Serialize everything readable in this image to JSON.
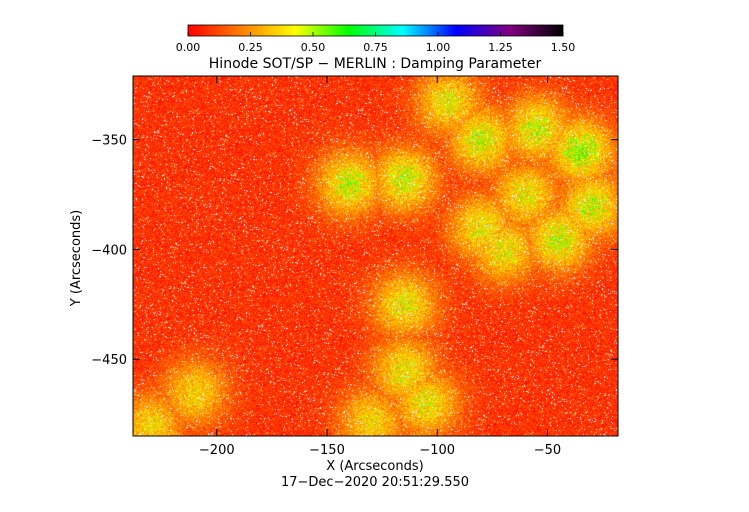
{
  "chart_data": {
    "type": "heatmap",
    "title": "Hinode SOT/SP − MERLIN : Damping Parameter",
    "xlabel": "X (Arcseconds)",
    "ylabel": "Y (Arcseconds)",
    "timestamp": "17−Dec−2020 20:51:29.550",
    "xlim": [
      -238,
      -18
    ],
    "ylim": [
      -485,
      -321
    ],
    "x_ticks": [
      -200,
      -150,
      -100,
      -50
    ],
    "x_tick_labels": [
      "−200",
      "−150",
      "−100",
      "−50"
    ],
    "y_ticks": [
      -350,
      -400,
      -450
    ],
    "y_tick_labels": [
      "−350",
      "−400",
      "−450"
    ],
    "colorbar": {
      "range": [
        0,
        1.5
      ],
      "ticks": [
        0,
        0.25,
        0.5,
        0.75,
        1.0,
        1.25,
        1.5
      ],
      "tick_labels": [
        "0.00",
        "0.25",
        "0.50",
        "0.75",
        "1.00",
        "1.25",
        "1.50"
      ],
      "colormap": [
        "#ff0000",
        "#ff8000",
        "#ffff00",
        "#00ff00",
        "#00ffff",
        "#0000ff",
        "#800080",
        "#000000"
      ]
    },
    "background_value": 0.1,
    "enhanced_regions": [
      {
        "x": -140,
        "y": -370,
        "value": 0.55
      },
      {
        "x": -115,
        "y": -368,
        "value": 0.55
      },
      {
        "x": -95,
        "y": -333,
        "value": 0.5
      },
      {
        "x": -80,
        "y": -350,
        "value": 0.55
      },
      {
        "x": -55,
        "y": -345,
        "value": 0.55
      },
      {
        "x": -35,
        "y": -355,
        "value": 0.6
      },
      {
        "x": -30,
        "y": -380,
        "value": 0.55
      },
      {
        "x": -60,
        "y": -375,
        "value": 0.5
      },
      {
        "x": -80,
        "y": -390,
        "value": 0.5
      },
      {
        "x": -70,
        "y": -400,
        "value": 0.5
      },
      {
        "x": -45,
        "y": -395,
        "value": 0.55
      },
      {
        "x": -115,
        "y": -425,
        "value": 0.5
      },
      {
        "x": -115,
        "y": -455,
        "value": 0.5
      },
      {
        "x": -105,
        "y": -470,
        "value": 0.5
      },
      {
        "x": -210,
        "y": -465,
        "value": 0.45
      },
      {
        "x": -230,
        "y": -480,
        "value": 0.45
      },
      {
        "x": -130,
        "y": -478,
        "value": 0.45
      }
    ]
  }
}
